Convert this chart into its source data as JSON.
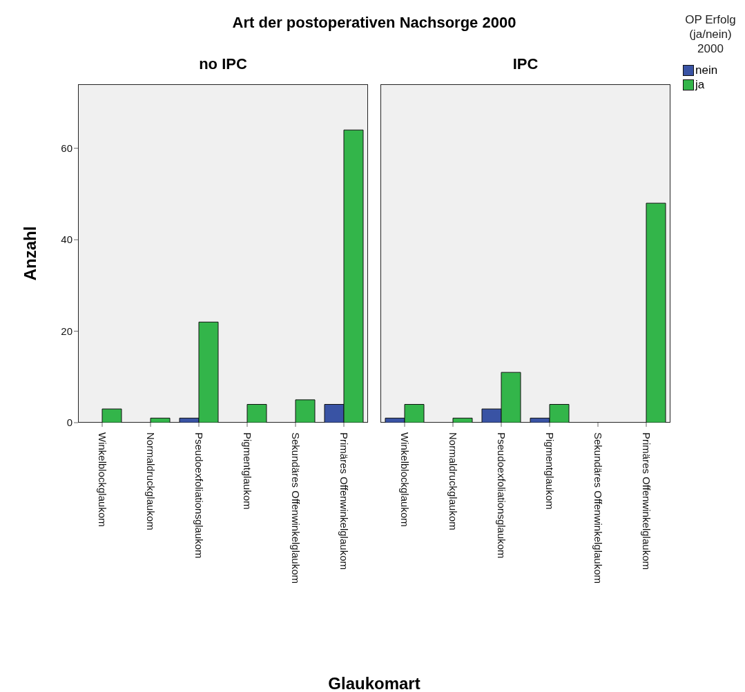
{
  "chart_data": [
    {
      "type": "bar",
      "title": "no IPC",
      "annotations": [
        "Art der postoperativen Nachsorge 2000"
      ],
      "xlabel": "Glaukomart",
      "ylabel": "Anzahl",
      "categories": [
        "Winkelblockglaukom",
        "Normaldruckglaukom",
        "Pseudoexfoliationsglaukom",
        "Pigmentglaukom",
        "Sekundäres Offenwinkelglaukom",
        "Primäres Offenwinkelglaukom"
      ],
      "series": [
        {
          "color": "#3953a4",
          "values": [
            null,
            0,
            1,
            null,
            0,
            4
          ]
        },
        {
          "color": "#33b54a",
          "values": [
            3,
            1,
            22,
            4,
            5,
            64
          ]
        }
      ],
      "ylim": [
        0,
        74
      ],
      "yticks": [
        0,
        20,
        40,
        60
      ],
      "grid": false,
      "legend": false
    },
    {
      "type": "bar",
      "title": "IPC",
      "categories": [
        "Winkelblockglaukom",
        "Normaldruckglaukom",
        "Pseudoexfoliationsglaukom",
        "Pigmentglaukom",
        "Sekundäres Offenwinkelglaukom",
        "Primäres Offenwinkelglaukom"
      ],
      "series": [
        {
          "name": "nein",
          "color": "#3953a4",
          "values": [
            1,
            null,
            3,
            1,
            null,
            null
          ]
        },
        {
          "name": "ja",
          "color": "#33b54a",
          "values": [
            4,
            1,
            11,
            4,
            null,
            48
          ]
        }
      ],
      "ylim": [
        0,
        74
      ],
      "yticks": [
        0,
        20,
        40,
        60
      ],
      "tick_labels": "x",
      "grid": false,
      "legend": "right",
      "legend_title": "OP Erfolg (ja/nein) 2000"
    }
  ]
}
